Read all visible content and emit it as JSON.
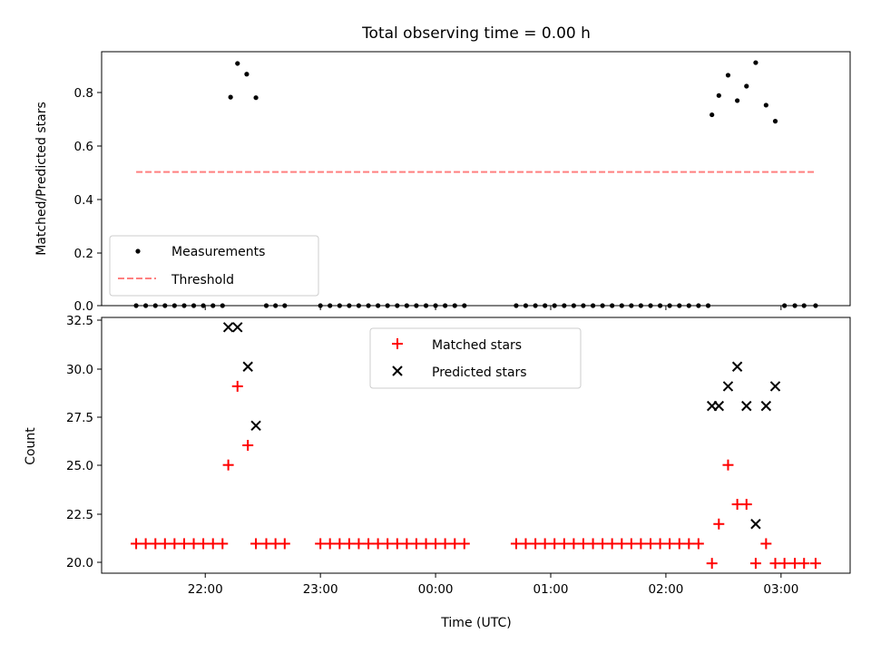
{
  "title": "Total observing time = 0.00 h",
  "xlabel": "Time (UTC)",
  "xtick_labels": [
    "22:00",
    "23:00",
    "00:00",
    "01:00",
    "02:00",
    "03:00"
  ],
  "chart_data": [
    {
      "type": "scatter",
      "panel": "top",
      "ylabel": "Matched/Predicted stars",
      "ylim": [
        0.0,
        0.95
      ],
      "yticks": [
        "0.0",
        "0.2",
        "0.4",
        "0.6",
        "0.8"
      ],
      "xlim_hours": [
        21.1,
        27.6
      ],
      "time_axis": "UTC hours after 00:00 of first night (values > 24 are next day)",
      "legend_position": "lower-left",
      "series": [
        {
          "name": "Measurements",
          "style": "dot",
          "color": "#000000",
          "x": [
            21.4,
            21.483,
            21.567,
            21.65,
            21.733,
            21.817,
            21.9,
            21.983,
            22.067,
            22.15,
            22.22,
            22.28,
            22.36,
            22.44,
            22.53,
            22.61,
            22.69,
            23.0,
            23.083,
            23.167,
            23.25,
            23.333,
            23.417,
            23.5,
            23.583,
            23.667,
            23.75,
            23.833,
            23.917,
            24.0,
            24.083,
            24.167,
            24.25,
            24.7,
            24.783,
            24.867,
            24.95,
            25.033,
            25.117,
            25.2,
            25.283,
            25.367,
            25.45,
            25.533,
            25.617,
            25.7,
            25.783,
            25.867,
            25.95,
            26.033,
            26.117,
            26.2,
            26.283,
            26.367,
            26.4,
            26.46,
            26.54,
            26.62,
            26.7,
            26.78,
            26.87,
            26.95,
            27.03,
            27.12,
            27.2,
            27.3
          ],
          "y": [
            0,
            0,
            0,
            0,
            0,
            0,
            0,
            0,
            0,
            0,
            0.78,
            0.906,
            0.866,
            0.778,
            0,
            0,
            0,
            0,
            0,
            0,
            0,
            0,
            0,
            0,
            0,
            0,
            0,
            0,
            0,
            0,
            0,
            0,
            0,
            0,
            0,
            0,
            0,
            0,
            0,
            0,
            0,
            0,
            0,
            0,
            0,
            0,
            0,
            0,
            0,
            0,
            0,
            0,
            0,
            0,
            0.714,
            0.786,
            0.862,
            0.767,
            0.821,
            0.909,
            0.75,
            0.69,
            0,
            0,
            0,
            0
          ]
        },
        {
          "name": "Threshold",
          "style": "dashed-line",
          "color": "#ff7f7f",
          "x": [
            21.4,
            27.3
          ],
          "y": [
            0.5,
            0.5
          ]
        }
      ]
    },
    {
      "type": "scatter",
      "panel": "bottom",
      "ylabel": "Count",
      "ylim": [
        19.5,
        32.5
      ],
      "yticks": [
        "20.0",
        "22.5",
        "25.0",
        "27.5",
        "30.0",
        "32.5"
      ],
      "xlim_hours": [
        21.1,
        27.6
      ],
      "legend_position": "upper-center",
      "series": [
        {
          "name": "Matched stars",
          "style": "plus",
          "color": "#ff0000",
          "x": [
            21.4,
            21.483,
            21.567,
            21.65,
            21.733,
            21.817,
            21.9,
            21.983,
            22.067,
            22.15,
            22.2,
            22.28,
            22.37,
            22.44,
            22.53,
            22.61,
            22.69,
            23.0,
            23.083,
            23.167,
            23.25,
            23.333,
            23.417,
            23.5,
            23.583,
            23.667,
            23.75,
            23.833,
            23.917,
            24.0,
            24.083,
            24.167,
            24.25,
            24.7,
            24.783,
            24.867,
            24.95,
            25.033,
            25.117,
            25.2,
            25.283,
            25.367,
            25.45,
            25.533,
            25.617,
            25.7,
            25.783,
            25.867,
            25.95,
            26.033,
            26.117,
            26.2,
            26.283,
            26.4,
            26.46,
            26.54,
            26.62,
            26.7,
            26.78,
            26.87,
            26.95,
            27.03,
            27.12,
            27.2,
            27.3
          ],
          "y": [
            21,
            21,
            21,
            21,
            21,
            21,
            21,
            21,
            21,
            21,
            25,
            29,
            26,
            21,
            21,
            21,
            21,
            21,
            21,
            21,
            21,
            21,
            21,
            21,
            21,
            21,
            21,
            21,
            21,
            21,
            21,
            21,
            21,
            21,
            21,
            21,
            21,
            21,
            21,
            21,
            21,
            21,
            21,
            21,
            21,
            21,
            21,
            21,
            21,
            21,
            21,
            21,
            21,
            20,
            22,
            25,
            23,
            23,
            20,
            21,
            20,
            20,
            20,
            20,
            20
          ]
        },
        {
          "name": "Predicted stars",
          "style": "x",
          "color": "#000000",
          "x": [
            22.2,
            22.28,
            22.37,
            22.44,
            26.4,
            26.46,
            26.54,
            26.62,
            26.7,
            26.78,
            26.87,
            26.95
          ],
          "y": [
            32,
            32,
            30,
            27,
            28,
            28,
            29,
            30,
            28,
            22,
            28,
            29
          ]
        }
      ]
    }
  ]
}
